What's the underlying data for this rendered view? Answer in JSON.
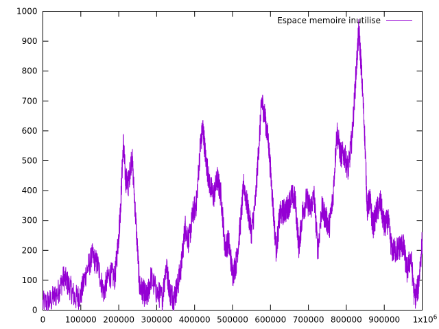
{
  "chart_data": {
    "type": "line",
    "title": "",
    "xlabel": "",
    "ylabel": "",
    "xlim": [
      0,
      1000000
    ],
    "ylim": [
      0,
      1000
    ],
    "grid": false,
    "legend_position": "top-right",
    "x_ticks": [
      0,
      100000,
      200000,
      300000,
      400000,
      500000,
      600000,
      700000,
      800000,
      900000,
      1000000
    ],
    "x_tick_labels": [
      "0",
      "100000",
      "200000",
      "300000",
      "400000",
      "500000",
      "600000",
      "700000",
      "800000",
      "900000",
      "1x10"
    ],
    "x_last_tick_exponent": "6",
    "y_ticks": [
      0,
      100,
      200,
      300,
      400,
      500,
      600,
      700,
      800,
      900,
      1000
    ],
    "y_tick_labels": [
      "0",
      "100",
      "200",
      "300",
      "400",
      "500",
      "600",
      "700",
      "800",
      "900",
      "1000"
    ],
    "series": [
      {
        "name": "Espace memoire inutilise",
        "color": "#9400d3",
        "x": [
          0,
          20000,
          40000,
          55000,
          70000,
          85000,
          100000,
          115000,
          130000,
          145000,
          160000,
          175000,
          190000,
          200000,
          205000,
          212000,
          218000,
          225000,
          235000,
          245000,
          255000,
          265000,
          275000,
          285000,
          300000,
          315000,
          325000,
          335000,
          345000,
          355000,
          365000,
          375000,
          385000,
          395000,
          405000,
          415000,
          422000,
          430000,
          440000,
          450000,
          460000,
          470000,
          480000,
          490000,
          500000,
          510000,
          520000,
          530000,
          540000,
          550000,
          560000,
          570000,
          577000,
          585000,
          595000,
          605000,
          615000,
          625000,
          635000,
          645000,
          655000,
          665000,
          675000,
          685000,
          695000,
          705000,
          715000,
          725000,
          735000,
          745000,
          755000,
          765000,
          775000,
          785000,
          795000,
          805000,
          815000,
          825000,
          833000,
          840000,
          848000,
          855000,
          862000,
          870000,
          880000,
          890000,
          900000,
          910000,
          920000,
          930000,
          940000,
          950000,
          960000,
          970000,
          980000,
          990000,
          1000000
        ],
        "values": [
          20,
          30,
          60,
          110,
          80,
          40,
          50,
          130,
          180,
          150,
          60,
          120,
          110,
          250,
          350,
          560,
          440,
          420,
          520,
          300,
          80,
          60,
          40,
          110,
          60,
          40,
          150,
          60,
          40,
          80,
          150,
          280,
          230,
          320,
          360,
          550,
          610,
          500,
          420,
          380,
          440,
          380,
          210,
          230,
          120,
          160,
          280,
          420,
          340,
          260,
          360,
          560,
          700,
          650,
          560,
          380,
          200,
          320,
          330,
          340,
          380,
          370,
          210,
          330,
          370,
          340,
          380,
          200,
          340,
          310,
          280,
          380,
          600,
          520,
          520,
          470,
          580,
          780,
          940,
          800,
          600,
          340,
          370,
          280,
          330,
          360,
          280,
          300,
          200,
          200,
          210,
          220,
          130,
          180,
          40,
          80,
          230
        ]
      }
    ]
  }
}
